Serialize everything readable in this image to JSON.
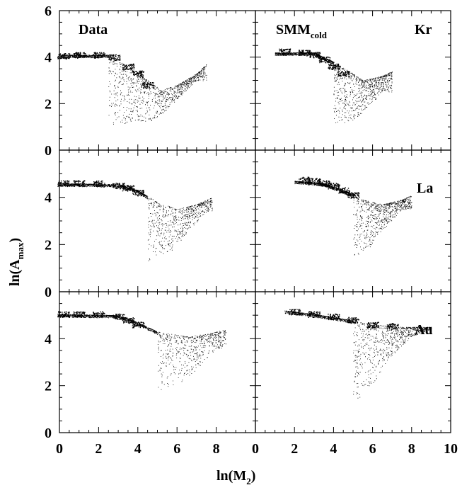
{
  "chart_data": {
    "type": "scatter",
    "xlabel": "ln(M",
    "xlabel_sub": "2",
    "xlabel_end": ")",
    "ylabel": "ln(A",
    "ylabel_sub": "max",
    "ylabel_end": ")",
    "x_ticks_left": [
      0,
      2,
      4,
      6,
      8
    ],
    "x_ticks_right": [
      0,
      2,
      4,
      6,
      8,
      10
    ],
    "y_ticks_top": [
      0,
      2,
      4,
      6
    ],
    "y_ticks_other": [
      0,
      2,
      4
    ],
    "xlim_left": [
      0,
      10
    ],
    "xlim_right": [
      0,
      10
    ],
    "ylim": [
      0,
      6
    ],
    "rows": [
      "Kr",
      "La",
      "Au"
    ],
    "columns": [
      "Data",
      "SMM"
    ],
    "column_labels": {
      "data": "Data",
      "model": "SMM",
      "model_sub": "cold"
    },
    "panels": [
      {
        "row": "Kr",
        "column": "Data",
        "band": [
          [
            0.0,
            4.1
          ],
          [
            2.5,
            4.1
          ],
          [
            3.5,
            3.6
          ],
          [
            4.5,
            3.0
          ],
          [
            5.2,
            2.6
          ],
          [
            6.0,
            2.8
          ],
          [
            7.0,
            3.3
          ],
          [
            7.5,
            3.7
          ]
        ],
        "lower": [
          [
            2.5,
            1.1
          ],
          [
            4.0,
            1.2
          ],
          [
            5.0,
            1.3
          ],
          [
            6.0,
            2.2
          ],
          [
            7.0,
            3.0
          ]
        ],
        "dense_points": [
          [
            0.2,
            4.05
          ],
          [
            1.0,
            4.1
          ],
          [
            2.0,
            4.1
          ],
          [
            2.8,
            4.0
          ],
          [
            3.5,
            3.6
          ],
          [
            4.0,
            3.3
          ],
          [
            4.5,
            2.8
          ]
        ]
      },
      {
        "row": "Kr",
        "column": "SMM",
        "band": [
          [
            1.0,
            4.2
          ],
          [
            3.0,
            4.2
          ],
          [
            4.0,
            3.8
          ],
          [
            4.8,
            3.4
          ],
          [
            5.5,
            3.0
          ],
          [
            6.5,
            3.2
          ],
          [
            7.0,
            3.4
          ]
        ],
        "lower": [
          [
            4.0,
            1.1
          ],
          [
            4.8,
            1.2
          ],
          [
            5.5,
            1.6
          ],
          [
            6.5,
            2.5
          ]
        ],
        "dense_points": [
          [
            1.5,
            4.25
          ],
          [
            2.5,
            4.2
          ],
          [
            3.0,
            4.1
          ],
          [
            3.5,
            3.9
          ],
          [
            4.0,
            3.6
          ],
          [
            4.5,
            3.3
          ]
        ]
      },
      {
        "row": "La",
        "column": "Data",
        "band": [
          [
            0.0,
            4.6
          ],
          [
            3.0,
            4.55
          ],
          [
            4.0,
            4.3
          ],
          [
            5.0,
            3.8
          ],
          [
            6.0,
            3.5
          ],
          [
            7.0,
            3.7
          ],
          [
            7.8,
            4.0
          ]
        ],
        "lower": [
          [
            4.5,
            1.3
          ],
          [
            5.0,
            1.5
          ],
          [
            5.8,
            1.8
          ],
          [
            6.5,
            2.5
          ],
          [
            7.5,
            3.4
          ]
        ],
        "dense_points": [
          [
            0.2,
            4.6
          ],
          [
            1.0,
            4.6
          ],
          [
            2.0,
            4.6
          ],
          [
            3.0,
            4.5
          ],
          [
            3.5,
            4.4
          ],
          [
            4.0,
            4.2
          ]
        ]
      },
      {
        "row": "La",
        "column": "SMM",
        "band": [
          [
            2.0,
            4.7
          ],
          [
            3.5,
            4.6
          ],
          [
            4.5,
            4.3
          ],
          [
            5.5,
            3.9
          ],
          [
            6.5,
            3.7
          ],
          [
            7.5,
            3.9
          ],
          [
            8.0,
            4.1
          ]
        ],
        "lower": [
          [
            5.0,
            1.5
          ],
          [
            5.8,
            1.8
          ],
          [
            6.5,
            2.6
          ],
          [
            7.5,
            3.5
          ]
        ],
        "dense_points": [
          [
            2.5,
            4.75
          ],
          [
            3.0,
            4.7
          ],
          [
            3.5,
            4.6
          ],
          [
            4.0,
            4.5
          ],
          [
            4.5,
            4.3
          ],
          [
            5.0,
            4.1
          ]
        ]
      },
      {
        "row": "Au",
        "column": "Data",
        "band": [
          [
            0.0,
            5.05
          ],
          [
            3.0,
            5.0
          ],
          [
            4.0,
            4.7
          ],
          [
            5.0,
            4.3
          ],
          [
            6.5,
            4.1
          ],
          [
            7.5,
            4.2
          ],
          [
            8.5,
            4.4
          ]
        ],
        "lower": [
          [
            5.0,
            1.8
          ],
          [
            6.0,
            2.0
          ],
          [
            7.0,
            2.7
          ],
          [
            8.0,
            3.6
          ]
        ],
        "dense_points": [
          [
            0.2,
            5.05
          ],
          [
            1.0,
            5.05
          ],
          [
            2.0,
            5.05
          ],
          [
            3.0,
            4.95
          ],
          [
            3.5,
            4.8
          ],
          [
            4.0,
            4.6
          ]
        ]
      },
      {
        "row": "Au",
        "column": "SMM",
        "band": [
          [
            1.5,
            5.2
          ],
          [
            3.0,
            5.05
          ],
          [
            4.5,
            4.85
          ],
          [
            6.0,
            4.6
          ],
          [
            7.5,
            4.5
          ],
          [
            9.0,
            4.5
          ]
        ],
        "lower": [
          [
            5.0,
            1.4
          ],
          [
            5.6,
            1.6
          ],
          [
            6.2,
            2.3
          ],
          [
            7.0,
            3.3
          ],
          [
            8.0,
            4.1
          ],
          [
            9.0,
            4.4
          ]
        ],
        "dense_points": [
          [
            2.0,
            5.15
          ],
          [
            3.0,
            5.05
          ],
          [
            4.0,
            4.95
          ],
          [
            5.0,
            4.8
          ],
          [
            6.0,
            4.6
          ],
          [
            7.0,
            4.55
          ]
        ]
      }
    ]
  }
}
